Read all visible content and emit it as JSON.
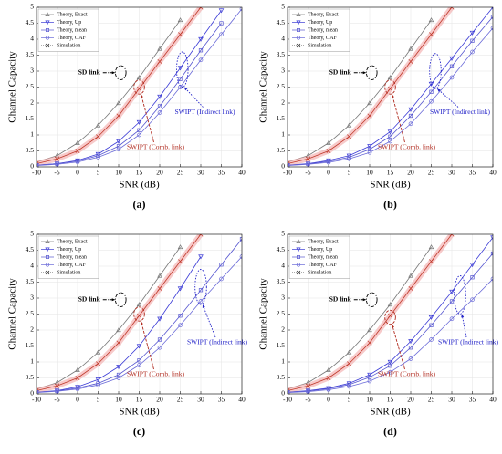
{
  "chart_data": [
    {
      "type": "line",
      "label": "(a)",
      "xlabel": "SNR (dB)",
      "ylabel": "Channel Capacity",
      "x": [
        -10,
        -5,
        0,
        5,
        10,
        15,
        20,
        25,
        30,
        35,
        40
      ],
      "xlim": [
        -10,
        40
      ],
      "xticks": [
        -10,
        -5,
        0,
        5,
        10,
        15,
        20,
        25,
        30,
        35,
        40
      ],
      "ylim": [
        0,
        5
      ],
      "yticks": [
        0,
        0.5,
        1,
        1.5,
        2,
        2.5,
        3,
        3.5,
        4,
        4.5,
        5
      ],
      "grid": true,
      "legend": [
        {
          "name": "Theory, Exact",
          "color": "#777777",
          "marker": "tri-up"
        },
        {
          "name": "Theory, Up",
          "color": "#3b3bd6",
          "marker": "tri-down"
        },
        {
          "name": "Theory, mean",
          "color": "#5555d0",
          "marker": "square"
        },
        {
          "name": "Theory, OAF",
          "color": "#6a6ad8",
          "marker": "circle"
        },
        {
          "name": "Simulation",
          "color": "#222222",
          "marker": "x"
        }
      ],
      "series": [
        {
          "color": "#777777",
          "marker": "tri-up",
          "values": [
            0.15,
            0.35,
            0.75,
            1.3,
            2.0,
            2.8,
            3.7,
            4.6,
            null,
            null,
            null
          ]
        },
        {
          "color": "#c0392b",
          "marker": "x",
          "band": true,
          "values": [
            0.1,
            0.25,
            0.5,
            0.95,
            1.6,
            2.45,
            3.3,
            4.15,
            5.0,
            null,
            null
          ]
        },
        {
          "color": "#3b3bd6",
          "marker": "tri-down",
          "values": [
            0.05,
            0.1,
            0.2,
            0.4,
            0.8,
            1.4,
            2.2,
            3.1,
            4.0,
            4.9,
            null
          ]
        },
        {
          "color": "#5555d0",
          "marker": "square",
          "values": [
            0.05,
            0.1,
            0.18,
            0.35,
            0.65,
            1.15,
            1.9,
            2.75,
            3.65,
            4.5,
            null
          ]
        },
        {
          "color": "#6a6ad8",
          "marker": "circle",
          "values": [
            0.04,
            0.08,
            0.15,
            0.3,
            0.55,
            1.0,
            1.7,
            2.5,
            3.35,
            4.15,
            4.95
          ]
        }
      ],
      "annotations": [
        {
          "text": "SD link"
        },
        {
          "text": "SWIPT (Indirect link)"
        },
        {
          "text": "SWIPT (Comb. link)"
        }
      ]
    },
    {
      "type": "line",
      "label": "(b)",
      "xlabel": "SNR (dB)",
      "ylabel": "Channel Capacity",
      "x": [
        -10,
        -5,
        0,
        5,
        10,
        15,
        20,
        25,
        30,
        35,
        40
      ],
      "xlim": [
        -10,
        40
      ],
      "xticks": [
        -10,
        -5,
        0,
        5,
        10,
        15,
        20,
        25,
        30,
        35,
        40
      ],
      "ylim": [
        0,
        5
      ],
      "yticks": [
        0,
        0.5,
        1,
        1.5,
        2,
        2.5,
        3,
        3.5,
        4,
        4.5,
        5
      ],
      "grid": true,
      "legend": [
        {
          "name": "Theory, Exact",
          "color": "#777777",
          "marker": "tri-up"
        },
        {
          "name": "Theory, Up",
          "color": "#3b3bd6",
          "marker": "tri-down"
        },
        {
          "name": "Theory, mean",
          "color": "#5555d0",
          "marker": "square"
        },
        {
          "name": "Theory, OAF",
          "color": "#6a6ad8",
          "marker": "circle"
        },
        {
          "name": "Simulation",
          "color": "#222222",
          "marker": "x"
        }
      ],
      "series": [
        {
          "color": "#777777",
          "marker": "tri-up",
          "values": [
            0.15,
            0.35,
            0.75,
            1.3,
            2.0,
            2.8,
            3.7,
            4.6,
            null,
            null,
            null
          ]
        },
        {
          "color": "#c0392b",
          "marker": "x",
          "band": true,
          "values": [
            0.1,
            0.25,
            0.5,
            0.95,
            1.6,
            2.45,
            3.3,
            4.15,
            5.0,
            null,
            null
          ]
        },
        {
          "color": "#3b3bd6",
          "marker": "tri-down",
          "values": [
            0.05,
            0.1,
            0.2,
            0.35,
            0.65,
            1.1,
            1.8,
            2.6,
            3.4,
            4.2,
            5.0
          ]
        },
        {
          "color": "#5555d0",
          "marker": "square",
          "values": [
            0.05,
            0.09,
            0.17,
            0.3,
            0.55,
            0.95,
            1.6,
            2.35,
            3.15,
            3.95,
            4.7
          ]
        },
        {
          "color": "#6a6ad8",
          "marker": "circle",
          "values": [
            0.04,
            0.08,
            0.14,
            0.25,
            0.45,
            0.8,
            1.35,
            2.05,
            2.8,
            3.6,
            4.35
          ]
        }
      ],
      "annotations": [
        {
          "text": "SD link"
        },
        {
          "text": "SWIPT (Indirect link)"
        },
        {
          "text": "SWIPT (Comb. link)"
        }
      ]
    },
    {
      "type": "line",
      "label": "(c)",
      "xlabel": "SNR (dB)",
      "ylabel": "Channel Capacity",
      "x": [
        -10,
        -5,
        0,
        5,
        10,
        15,
        20,
        25,
        30,
        35,
        40
      ],
      "xlim": [
        -10,
        40
      ],
      "xticks": [
        -10,
        -5,
        0,
        5,
        10,
        15,
        20,
        25,
        30,
        35,
        40
      ],
      "ylim": [
        0,
        5
      ],
      "yticks": [
        0,
        0.5,
        1,
        1.5,
        2,
        2.5,
        3,
        3.5,
        4,
        4.5,
        5
      ],
      "grid": true,
      "legend": [
        {
          "name": "Theory, Exact",
          "color": "#777777",
          "marker": "tri-up"
        },
        {
          "name": "Theory, Up",
          "color": "#3b3bd6",
          "marker": "tri-down"
        },
        {
          "name": "Theory, mean",
          "color": "#5555d0",
          "marker": "square"
        },
        {
          "name": "Theory, OAF",
          "color": "#6a6ad8",
          "marker": "circle"
        },
        {
          "name": "Simulation",
          "color": "#222222",
          "marker": "x"
        }
      ],
      "series": [
        {
          "color": "#777777",
          "marker": "tri-up",
          "values": [
            0.15,
            0.35,
            0.75,
            1.3,
            2.0,
            2.8,
            3.7,
            4.6,
            null,
            null,
            null
          ]
        },
        {
          "color": "#c0392b",
          "marker": "x",
          "band": true,
          "values": [
            0.1,
            0.25,
            0.5,
            0.95,
            1.6,
            2.45,
            3.3,
            4.15,
            5.0,
            null,
            null
          ]
        },
        {
          "color": "#3b3bd6",
          "marker": "tri-down",
          "values": [
            0.05,
            0.1,
            0.22,
            0.45,
            0.85,
            1.5,
            2.35,
            3.3,
            4.3,
            null,
            null
          ]
        },
        {
          "color": "#5555d0",
          "marker": "square",
          "values": [
            0.05,
            0.09,
            0.18,
            0.33,
            0.6,
            1.05,
            1.7,
            2.45,
            3.25,
            4.05,
            4.85
          ]
        },
        {
          "color": "#6a6ad8",
          "marker": "circle",
          "values": [
            0.04,
            0.08,
            0.15,
            0.28,
            0.5,
            0.9,
            1.45,
            2.15,
            2.9,
            3.6,
            4.3
          ]
        }
      ],
      "annotations": [
        {
          "text": "SD link"
        },
        {
          "text": "SWIPT (Indirect link)"
        },
        {
          "text": "SWIPT (Comb. link)"
        }
      ]
    },
    {
      "type": "line",
      "label": "(d)",
      "xlabel": "SNR (dB)",
      "ylabel": "Channel Capacity",
      "x": [
        -10,
        -5,
        0,
        5,
        10,
        15,
        20,
        25,
        30,
        35,
        40
      ],
      "xlim": [
        -10,
        40
      ],
      "xticks": [
        -10,
        -5,
        0,
        5,
        10,
        15,
        20,
        25,
        30,
        35,
        40
      ],
      "ylim": [
        0,
        5
      ],
      "yticks": [
        0,
        0.5,
        1,
        1.5,
        2,
        2.5,
        3,
        3.5,
        4,
        4.5,
        5
      ],
      "grid": true,
      "legend": [
        {
          "name": "Theory, Exact",
          "color": "#777777",
          "marker": "tri-up"
        },
        {
          "name": "Theory, Up",
          "color": "#3b3bd6",
          "marker": "tri-down"
        },
        {
          "name": "Theory, mean",
          "color": "#5555d0",
          "marker": "square"
        },
        {
          "name": "Theory, OAF",
          "color": "#6a6ad8",
          "marker": "circle"
        },
        {
          "name": "Simulation",
          "color": "#222222",
          "marker": "x"
        }
      ],
      "series": [
        {
          "color": "#777777",
          "marker": "tri-up",
          "values": [
            0.15,
            0.35,
            0.75,
            1.3,
            2.0,
            2.8,
            3.7,
            4.6,
            null,
            null,
            null
          ]
        },
        {
          "color": "#c0392b",
          "marker": "x",
          "band": true,
          "values": [
            0.1,
            0.25,
            0.5,
            0.95,
            1.6,
            2.45,
            3.3,
            4.15,
            5.0,
            null,
            null
          ]
        },
        {
          "color": "#3b3bd6",
          "marker": "tri-down",
          "values": [
            0.05,
            0.1,
            0.18,
            0.33,
            0.6,
            1.0,
            1.65,
            2.4,
            3.2,
            4.05,
            4.9
          ]
        },
        {
          "color": "#5555d0",
          "marker": "square",
          "values": [
            0.05,
            0.09,
            0.16,
            0.29,
            0.52,
            0.88,
            1.45,
            2.15,
            2.9,
            3.65,
            4.4
          ]
        },
        {
          "color": "#6a6ad8",
          "marker": "circle",
          "values": [
            0.04,
            0.07,
            0.13,
            0.23,
            0.4,
            0.68,
            1.1,
            1.7,
            2.35,
            2.95,
            3.6
          ]
        }
      ],
      "annotations": [
        {
          "text": "SD link"
        },
        {
          "text": "SWIPT (Indirect link)"
        },
        {
          "text": "SWIPT (Comb. link)"
        }
      ]
    }
  ]
}
